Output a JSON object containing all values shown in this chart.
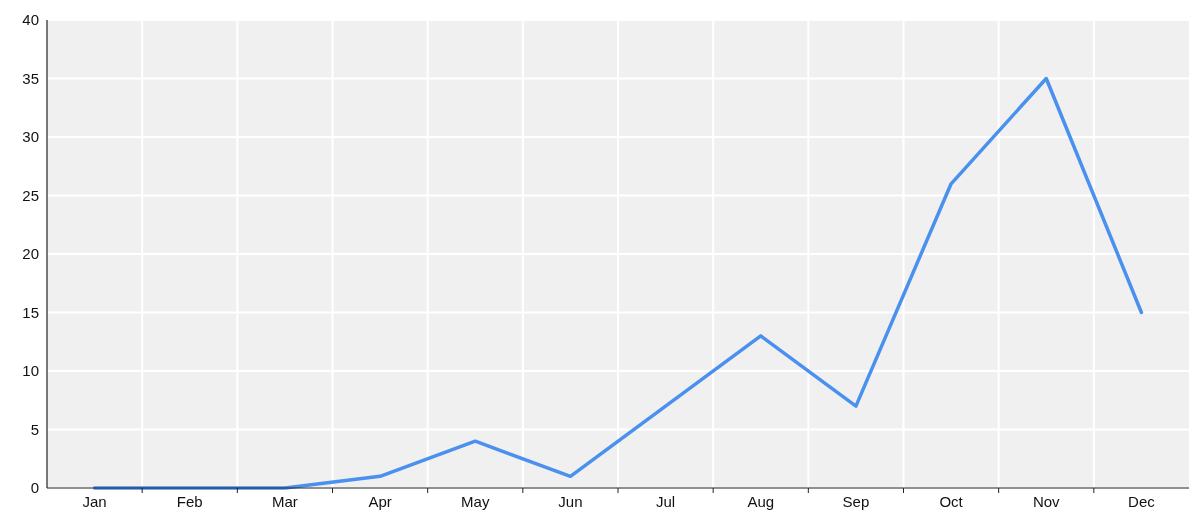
{
  "chart_data": {
    "type": "line",
    "categories": [
      "Jan",
      "Feb",
      "Mar",
      "Apr",
      "May",
      "Jun",
      "Jul",
      "Aug",
      "Sep",
      "Oct",
      "Nov",
      "Dec"
    ],
    "series": [
      {
        "color": "#4a90ee",
        "values": [
          0,
          0,
          0,
          1,
          4,
          1,
          7,
          13,
          7,
          26,
          35,
          15
        ]
      }
    ],
    "ylim": [
      0,
      40
    ],
    "yticks": [
      0,
      5,
      10,
      15,
      20,
      25,
      30,
      35,
      40
    ],
    "grid": true,
    "marker": "none",
    "line_style": "solid"
  }
}
